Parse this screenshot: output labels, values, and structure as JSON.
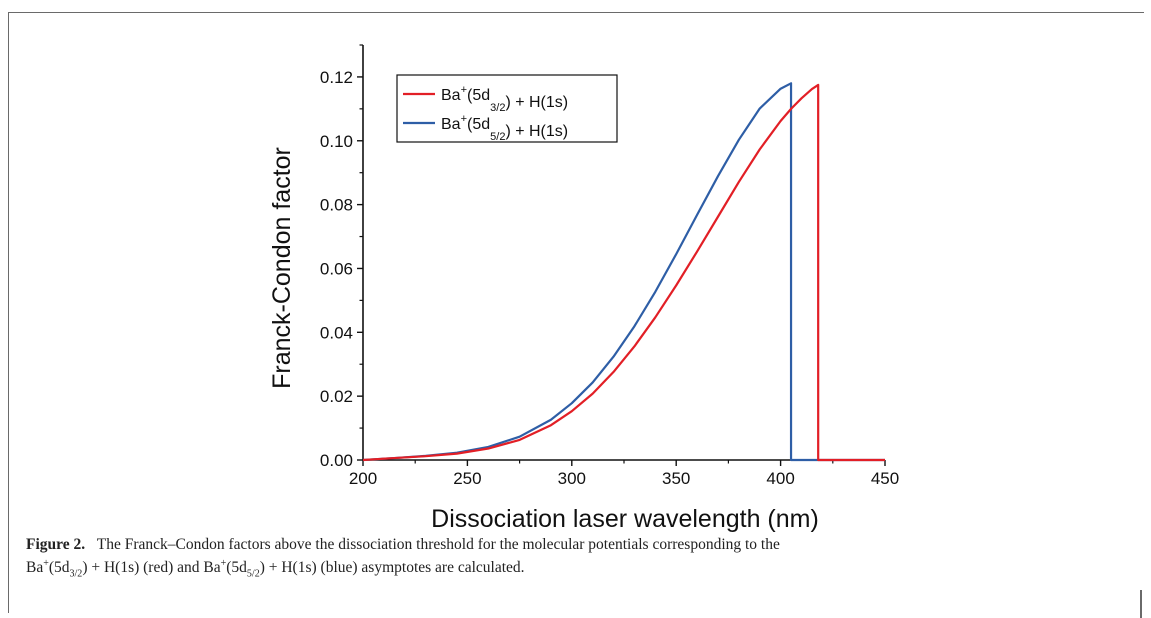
{
  "chart_data": {
    "type": "line",
    "xlabel": "Dissociation laser wavelength (nm)",
    "ylabel": "Franck-Condon factor",
    "xlim": [
      200,
      450
    ],
    "ylim": [
      0,
      0.13
    ],
    "xticks": [
      "200",
      "250",
      "300",
      "350",
      "400",
      "450"
    ],
    "yticks": [
      "0.00",
      "0.02",
      "0.04",
      "0.06",
      "0.08",
      "0.10",
      "0.12"
    ],
    "legend_position": "top-left",
    "grid": false,
    "series": [
      {
        "name_base": "Ba",
        "name_sup": "+",
        "name_mid": "(5d",
        "name_sub": "3/2",
        "name_end": ") + H(1s)",
        "color": "#e21f26",
        "x": [
          200,
          215,
          230,
          245,
          260,
          275,
          290,
          300,
          310,
          320,
          330,
          340,
          350,
          360,
          370,
          380,
          390,
          400,
          405,
          410,
          415,
          418,
          418.001,
          450
        ],
        "y": [
          0.0,
          0.0006,
          0.0012,
          0.002,
          0.0036,
          0.0063,
          0.0109,
          0.0153,
          0.0208,
          0.0276,
          0.0356,
          0.0447,
          0.0547,
          0.0653,
          0.0762,
          0.0871,
          0.0973,
          0.1062,
          0.11,
          0.1133,
          0.1162,
          0.1175,
          0.0,
          0.0
        ]
      },
      {
        "name_base": "Ba",
        "name_sup": "+",
        "name_mid": "(5d",
        "name_sub": "5/2",
        "name_end": ") + H(1s)",
        "color": "#2e5ea6",
        "x": [
          200,
          215,
          230,
          245,
          260,
          275,
          290,
          300,
          310,
          320,
          330,
          340,
          350,
          360,
          370,
          380,
          390,
          400,
          405,
          405.001,
          450
        ],
        "y": [
          0.0,
          0.0006,
          0.0013,
          0.0023,
          0.0041,
          0.0073,
          0.0126,
          0.0178,
          0.0243,
          0.0324,
          0.0419,
          0.0527,
          0.0645,
          0.0768,
          0.0889,
          0.1003,
          0.1101,
          0.1163,
          0.118,
          0.0,
          0.0
        ]
      }
    ]
  },
  "caption": {
    "label": "Figure 2.",
    "line1": "The Franck–Condon factors above the dissociation threshold for the molecular potentials corresponding to the",
    "p1_a": "Ba",
    "p1_sup": "+",
    "p1_b": "(5d",
    "p1_sub": "3/2",
    "p1_c": ") + H(1s) (red) and Ba",
    "p2_sup": "+",
    "p2_b": "(5d",
    "p2_sub": "5/2",
    "p2_c": ") + H(1s) (blue) asymptotes are calculated."
  }
}
